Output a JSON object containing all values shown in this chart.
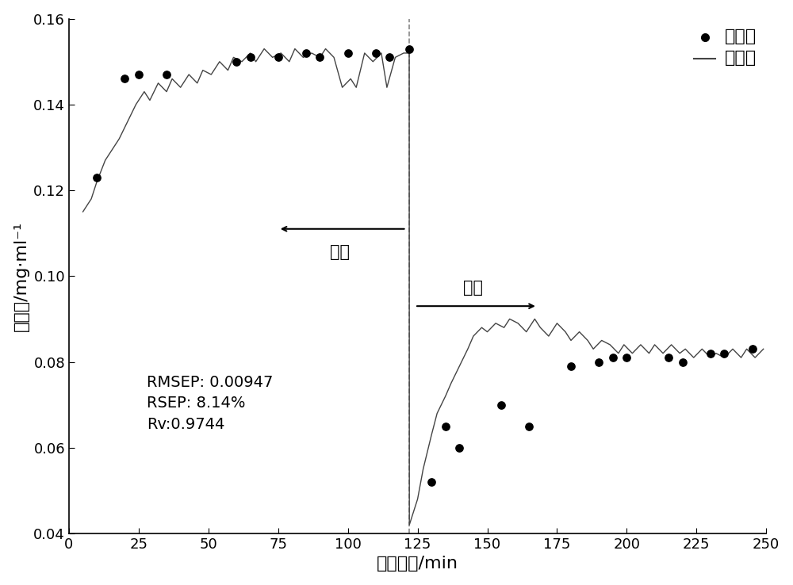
{
  "xlabel": "提取时间/min",
  "ylabel": "蝇花苷/mg·ml⁻¹",
  "xlim": [
    0,
    250
  ],
  "ylim": [
    0.04,
    0.16
  ],
  "xticks": [
    0,
    25,
    50,
    75,
    100,
    125,
    150,
    175,
    200,
    225,
    250
  ],
  "yticks": [
    0.04,
    0.06,
    0.08,
    0.1,
    0.12,
    0.14,
    0.16
  ],
  "line_color": "#444444",
  "dot_color": "#000000",
  "vline_x": 122,
  "vline_color": "#888888",
  "annotation_text1": "一煎",
  "annotation_text2": "二煎",
  "stats_text": "RMSEP: 0.00947\nRSEP: 8.14%\nRv:0.9744",
  "line_x": [
    5,
    8,
    10,
    13,
    16,
    18,
    21,
    24,
    27,
    29,
    32,
    35,
    37,
    40,
    43,
    46,
    48,
    51,
    54,
    57,
    59,
    62,
    65,
    67,
    70,
    73,
    76,
    79,
    81,
    84,
    87,
    90,
    92,
    95,
    98,
    101,
    103,
    106,
    109,
    112,
    114,
    117,
    120,
    122,
    122.05,
    125,
    127,
    130,
    132,
    135,
    137,
    140,
    143,
    145,
    148,
    150,
    153,
    156,
    158,
    161,
    164,
    167,
    169,
    172,
    175,
    178,
    180,
    183,
    186,
    188,
    191,
    194,
    197,
    199,
    202,
    205,
    208,
    210,
    213,
    216,
    219,
    221,
    224,
    227,
    230,
    232,
    235,
    238,
    241,
    243,
    246,
    249
  ],
  "line_y": [
    0.115,
    0.118,
    0.122,
    0.127,
    0.13,
    0.132,
    0.136,
    0.14,
    0.143,
    0.141,
    0.145,
    0.143,
    0.146,
    0.144,
    0.147,
    0.145,
    0.148,
    0.147,
    0.15,
    0.148,
    0.151,
    0.15,
    0.152,
    0.15,
    0.153,
    0.151,
    0.152,
    0.15,
    0.153,
    0.151,
    0.152,
    0.151,
    0.153,
    0.151,
    0.144,
    0.146,
    0.144,
    0.152,
    0.15,
    0.152,
    0.144,
    0.151,
    0.152,
    0.152,
    0.042,
    0.048,
    0.055,
    0.063,
    0.068,
    0.072,
    0.075,
    0.079,
    0.083,
    0.086,
    0.088,
    0.087,
    0.089,
    0.088,
    0.09,
    0.089,
    0.087,
    0.09,
    0.088,
    0.086,
    0.089,
    0.087,
    0.085,
    0.087,
    0.085,
    0.083,
    0.085,
    0.084,
    0.082,
    0.084,
    0.082,
    0.084,
    0.082,
    0.084,
    0.082,
    0.084,
    0.082,
    0.083,
    0.081,
    0.083,
    0.081,
    0.082,
    0.081,
    0.083,
    0.081,
    0.083,
    0.081,
    0.083
  ],
  "dot_x": [
    10,
    20,
    25,
    35,
    60,
    65,
    75,
    85,
    90,
    100,
    110,
    115,
    122,
    130,
    135,
    140,
    155,
    165,
    180,
    190,
    195,
    200,
    215,
    220,
    230,
    235,
    245
  ],
  "dot_y": [
    0.123,
    0.146,
    0.147,
    0.147,
    0.15,
    0.151,
    0.151,
    0.152,
    0.151,
    0.152,
    0.152,
    0.151,
    0.153,
    0.052,
    0.065,
    0.06,
    0.07,
    0.065,
    0.079,
    0.08,
    0.081,
    0.081,
    0.081,
    0.08,
    0.082,
    0.082,
    0.083
  ],
  "legend_dot_label": "实测值",
  "legend_line_label": "预测值"
}
